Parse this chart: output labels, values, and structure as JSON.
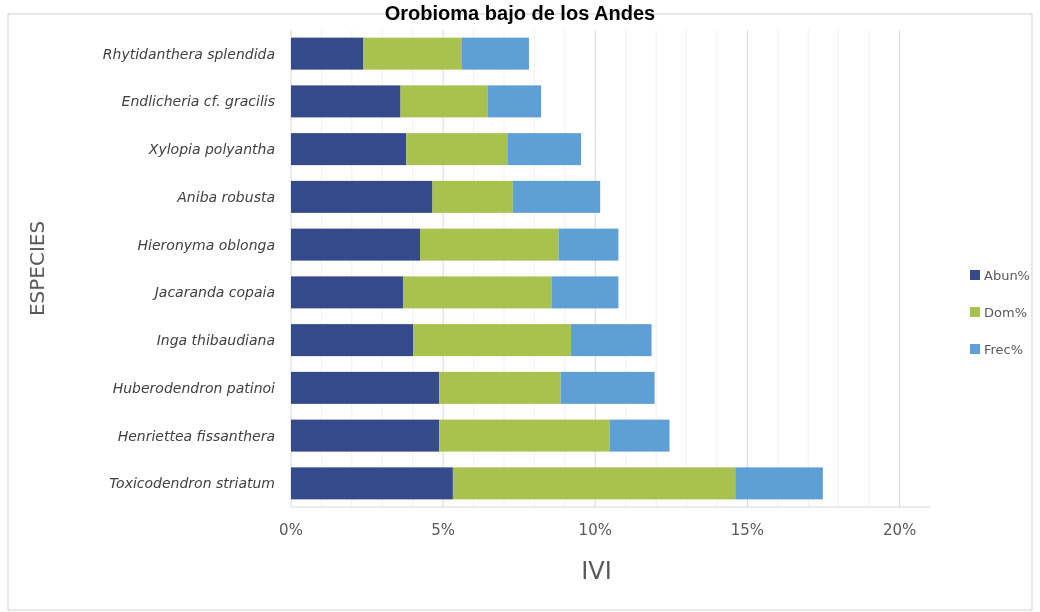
{
  "chart_data": {
    "type": "bar",
    "orientation": "horizontal",
    "stacked": true,
    "title": "Orobioma bajo de los Andes",
    "xlabel": "IVI",
    "ylabel": "ESPECIES",
    "categories": [
      "Rhytidanthera splendida",
      "Endlicheria cf. gracilis",
      "Xylopia polyantha",
      "Aniba robusta",
      "Hieronyma oblonga",
      "Jacaranda copaia",
      "Inga thibaudiana",
      "Huberodendron patinoi",
      "Henriettea fissanthera",
      "Toxicodendron striatum"
    ],
    "series": [
      {
        "name": "Abun%",
        "color": "#344a8a",
        "values": [
          2.38,
          3.6,
          3.79,
          4.65,
          4.24,
          3.68,
          4.01,
          4.87,
          4.87,
          5.32
        ]
      },
      {
        "name": "Dom%",
        "color": "#a9c24f",
        "values": [
          3.24,
          2.87,
          3.32,
          2.64,
          4.55,
          4.88,
          5.19,
          3.99,
          5.6,
          9.28
        ]
      },
      {
        "name": "Frec%",
        "color": "#5e9fd6",
        "values": [
          2.2,
          1.75,
          2.42,
          2.87,
          1.97,
          2.2,
          2.65,
          3.09,
          1.97,
          2.88
        ]
      }
    ],
    "xlim": [
      0,
      21
    ],
    "xticks": [
      {
        "value": 0,
        "label": "0%"
      },
      {
        "value": 1,
        "label": null
      },
      {
        "value": 2,
        "label": null
      },
      {
        "value": 3,
        "label": null
      },
      {
        "value": 4,
        "label": null
      },
      {
        "value": 5,
        "label": "5%"
      },
      {
        "value": 6,
        "label": null
      },
      {
        "value": 7,
        "label": null
      },
      {
        "value": 8,
        "label": null
      },
      {
        "value": 9,
        "label": null
      },
      {
        "value": 10,
        "label": "10%"
      },
      {
        "value": 11,
        "label": null
      },
      {
        "value": 12,
        "label": null
      },
      {
        "value": 13,
        "label": null
      },
      {
        "value": 14,
        "label": null
      },
      {
        "value": 15,
        "label": "15%"
      },
      {
        "value": 16,
        "label": null
      },
      {
        "value": 17,
        "label": null
      },
      {
        "value": 18,
        "label": null
      },
      {
        "value": 19,
        "label": null
      },
      {
        "value": 20,
        "label": "20%"
      }
    ],
    "grid": "x",
    "legend": "right"
  }
}
